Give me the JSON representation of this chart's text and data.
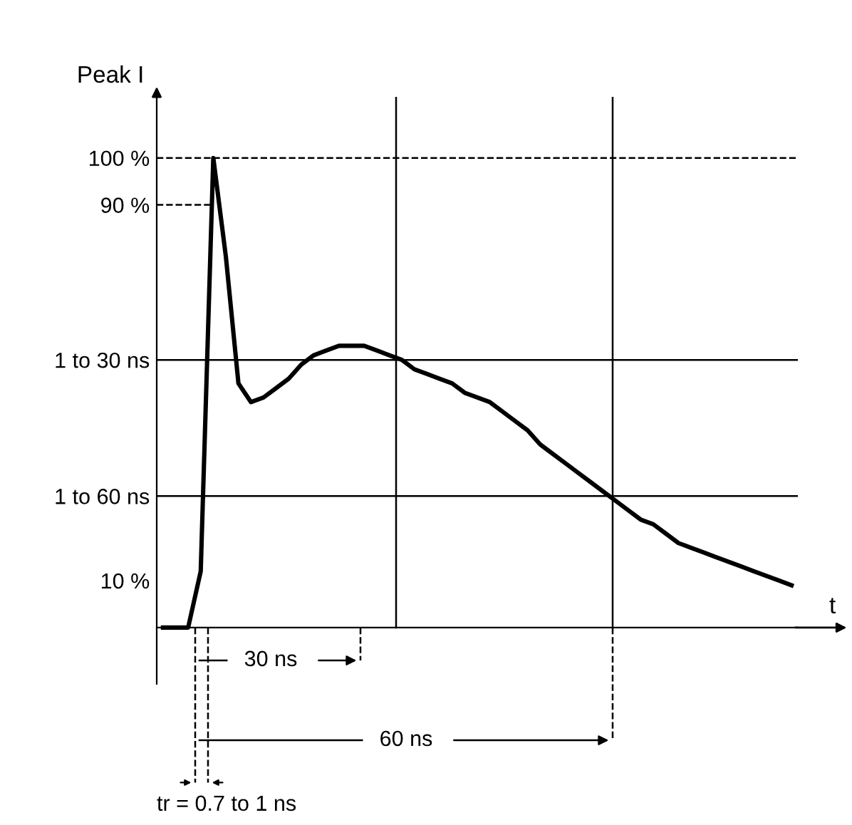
{
  "chart_data": {
    "type": "line",
    "ylabel": "Peak I",
    "xlabel": "t",
    "tick_labels": "y",
    "ylim": [
      -12,
      113
    ],
    "categories": [
      null,
      null,
      null,
      null,
      null,
      null,
      null,
      null,
      null,
      null,
      null,
      null,
      null,
      null,
      null,
      null,
      null,
      null,
      null,
      null,
      null,
      null,
      null,
      null,
      null,
      null,
      null,
      null,
      null,
      null,
      null,
      null,
      null,
      null,
      null,
      null,
      null,
      null,
      null,
      null,
      null,
      null,
      null,
      null,
      null,
      null,
      null,
      null,
      null,
      null,
      null
    ],
    "yticks": [
      {
        "value": 100,
        "label": "100 %"
      },
      {
        "value": 90,
        "label": "90 %"
      },
      {
        "value": 57,
        "label": "1 to 30 ns"
      },
      {
        "value": 28,
        "label": "1 to 60 ns"
      },
      {
        "value": 10,
        "label": "10 %"
      }
    ],
    "series": [
      {
        "color": "#000000",
        "line_style": "solid",
        "values": [
          0,
          0,
          0,
          12,
          100,
          79,
          52,
          48,
          49,
          51,
          53,
          56,
          58,
          59,
          60,
          60,
          60,
          59,
          58,
          57,
          55,
          54,
          53,
          52,
          50,
          49,
          48,
          46,
          44,
          42,
          39,
          37,
          35,
          33,
          31,
          29,
          27,
          25,
          23,
          22,
          20,
          18,
          17,
          16,
          15,
          14,
          13,
          12,
          11,
          10,
          9
        ]
      }
    ],
    "ref_lines": [
      {
        "axis": "y",
        "value": 100,
        "line_style": "dashed"
      },
      {
        "axis": "y",
        "value": 90,
        "line_style": "dashed"
      },
      {
        "axis": "y",
        "value": 57,
        "line_style": "solid"
      },
      {
        "axis": "y",
        "value": 28,
        "line_style": "solid"
      }
    ],
    "annotations": [
      "30 ns",
      "60 ns",
      "tr = 0.7 to 1 ns"
    ],
    "grid": false
  }
}
